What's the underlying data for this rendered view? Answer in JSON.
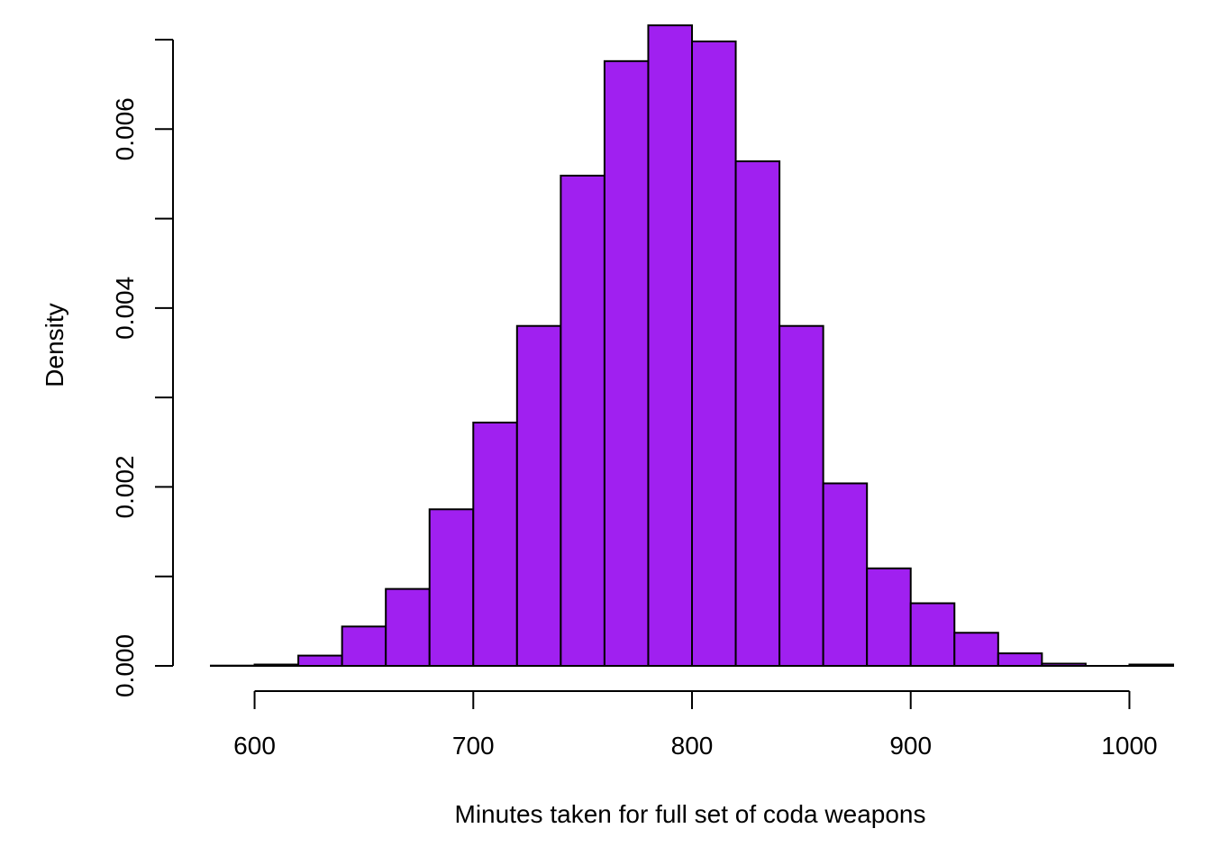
{
  "chart_data": {
    "type": "bar",
    "subtype": "histogram",
    "title": "",
    "xlabel": "Minutes taken for full set of coda weapons",
    "ylabel": "Density",
    "bin_edges": [
      580,
      600,
      620,
      640,
      660,
      680,
      700,
      720,
      740,
      760,
      780,
      800,
      820,
      840,
      860,
      880,
      900,
      920,
      940,
      960,
      980,
      1000,
      1020
    ],
    "values": [
      3e-06,
      1.5e-05,
      0.000115,
      0.00044,
      0.00086,
      0.00175,
      0.00272,
      0.0038,
      0.00548,
      0.00676,
      0.00716,
      0.00698,
      0.00564,
      0.0038,
      0.00204,
      0.00109,
      0.0007,
      0.00037,
      0.00014,
      2.5e-05,
      0.0,
      1.5e-05
    ],
    "x_ticks": [
      600,
      700,
      800,
      900,
      1000
    ],
    "x_tick_labels": [
      "600",
      "700",
      "800",
      "900",
      "1000"
    ],
    "y_ticks": [
      0,
      0.001,
      0.002,
      0.003,
      0.004,
      0.005,
      0.006,
      0.007
    ],
    "y_tick_labels": [
      "0.000",
      "",
      "0.002",
      "",
      "0.004",
      "",
      "0.006",
      ""
    ],
    "xlim": [
      580,
      1020
    ],
    "ylim": [
      0,
      0.007
    ],
    "grid": false,
    "bar_color": "#A020F0",
    "edge_color": "#000000"
  }
}
